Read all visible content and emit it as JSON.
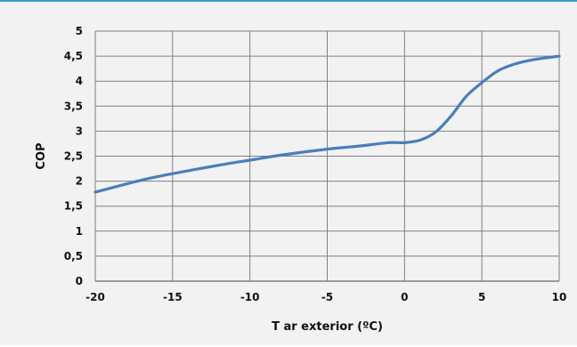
{
  "chart_data": {
    "type": "line",
    "xlabel": "T ar exterior (ºC)",
    "ylabel": "COP",
    "xlim": [
      -20,
      10
    ],
    "ylim": [
      0,
      5
    ],
    "x_ticks": [
      -20,
      -15,
      -10,
      -5,
      0,
      5,
      10
    ],
    "y_ticks": [
      0,
      0.5,
      1,
      1.5,
      2,
      2.5,
      3,
      3.5,
      4,
      4.5,
      5
    ],
    "x_tick_labels": [
      "-20",
      "-15",
      "-10",
      "-5",
      "0",
      "5",
      "10"
    ],
    "y_tick_labels": [
      "0",
      "0,5",
      "1",
      "1,5",
      "2",
      "2,5",
      "3",
      "3,5",
      "4",
      "4,5",
      "5"
    ],
    "grid": true,
    "legend": "none",
    "series": [
      {
        "color": "#4a7ebb",
        "x": [
          -20,
          -17,
          -15,
          -12,
          -10,
          -8,
          -5,
          -3,
          -1,
          0,
          1,
          2,
          3,
          4,
          5,
          6,
          7,
          8,
          9,
          10
        ],
        "y": [
          1.78,
          2.02,
          2.15,
          2.32,
          2.42,
          2.52,
          2.64,
          2.7,
          2.77,
          2.77,
          2.82,
          2.98,
          3.3,
          3.7,
          3.97,
          4.2,
          4.33,
          4.41,
          4.46,
          4.5
        ]
      }
    ]
  }
}
